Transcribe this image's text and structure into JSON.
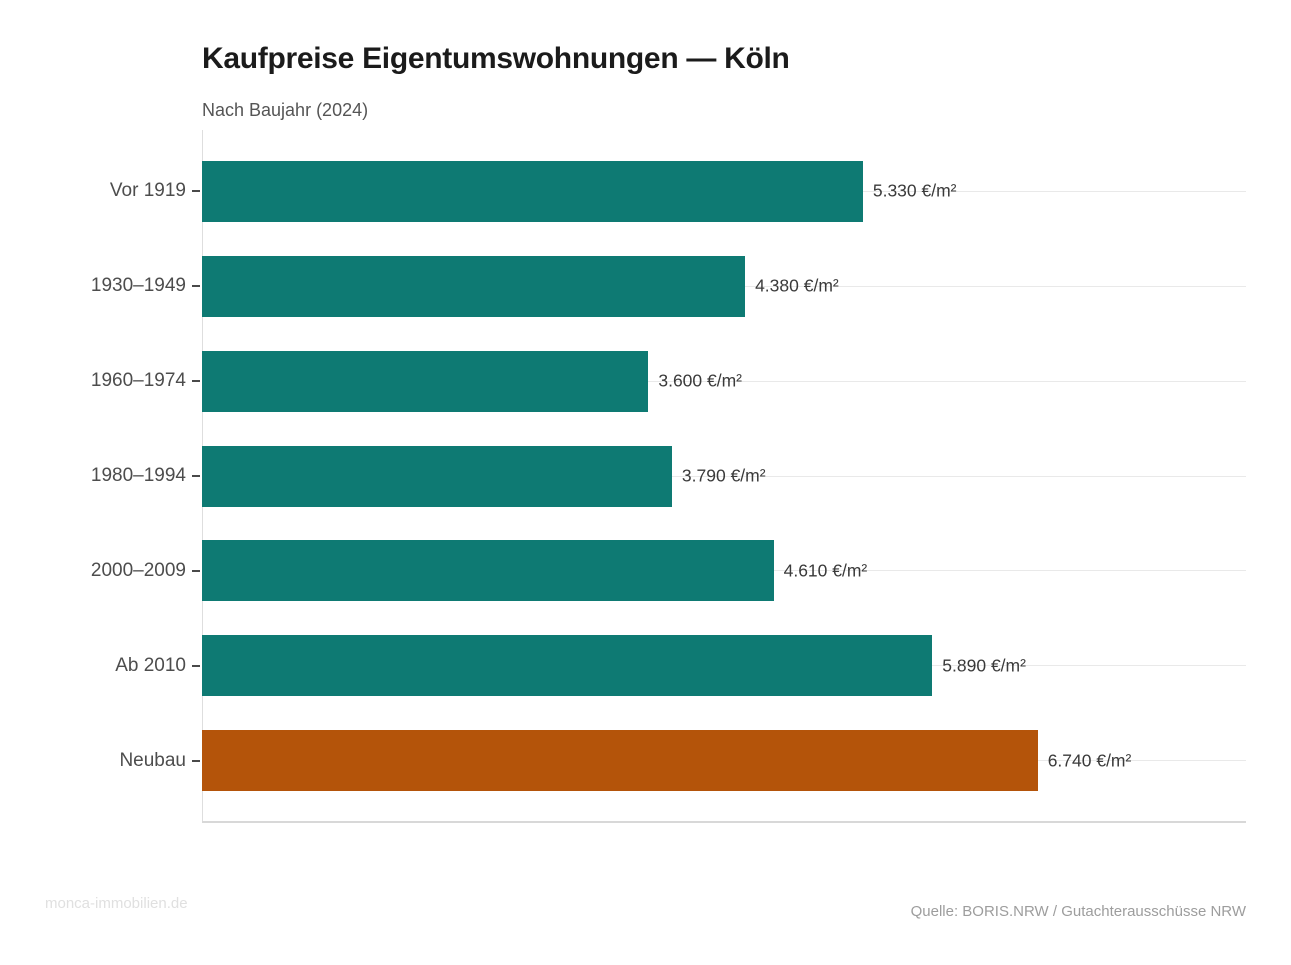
{
  "header": {
    "title": "Kaufpreise Eigentumswohnungen — Köln",
    "subtitle": "Nach Baujahr (2024)"
  },
  "footer": {
    "watermark": "monca-immobilien.de",
    "source": "Quelle: BORIS.NRW / Gutachterausschüsse NRW"
  },
  "colors": {
    "bar_default": "#0e7a73",
    "bar_highlight": "#b4540a",
    "gridline": "#e9e9e9",
    "axis_line": "#dedede",
    "tick": "#4a4a4a",
    "category_label": "#4d4d4d",
    "value_label": "#3a3a3a",
    "title": "#1b1b1b",
    "subtitle": "#555555",
    "watermark": "#e0e0e0",
    "source": "#9d9d9d"
  },
  "chart_data": {
    "type": "bar",
    "orientation": "horizontal",
    "title": "Kaufpreise Eigentumswohnungen — Köln",
    "subtitle": "Nach Baujahr (2024)",
    "categories": [
      "Vor 1919",
      "1930–1949",
      "1960–1974",
      "1980–1994",
      "2000–2009",
      "Ab 2010",
      "Neubau"
    ],
    "values": [
      5330,
      4380,
      3600,
      3790,
      4610,
      5890,
      6740
    ],
    "value_labels": [
      "5.330 €/m²",
      "4.380 €/m²",
      "3.600 €/m²",
      "3.790 €/m²",
      "4.610 €/m²",
      "5.890 €/m²",
      "6.740 €/m²"
    ],
    "unit": "€/m²",
    "highlight_index": 6,
    "xlim": [
      0,
      8420
    ],
    "grid": "category-center horizontal gridlines",
    "legend": "none"
  }
}
